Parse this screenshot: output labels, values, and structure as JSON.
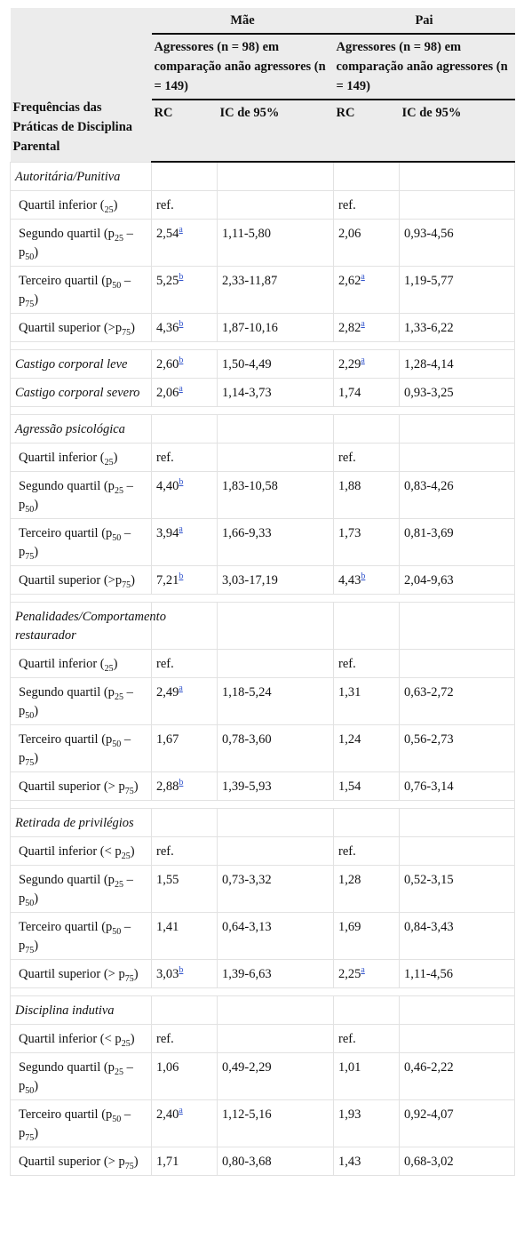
{
  "header": {
    "row_label": "Frequências das Práticas de Disciplina Parental",
    "mae": "Mãe",
    "pai": "Pai",
    "group_mae": "Agressores (n = 98) em comparação anão agressores (n = 149)",
    "group_pai": "Agressores (n = 98) em comparação anão agressores (n = 149)",
    "rc_mae": "RC",
    "ic_mae": "IC de 95%",
    "rc_pai": "RC",
    "ic_pai": "IC de 95%"
  },
  "groups": [
    {
      "title": "Autoritária/Punitiva",
      "rows": [
        {
          "label": [
            "Quartil inferior (",
            {
              "sub": "25"
            },
            ")"
          ],
          "cells": [
            "ref.",
            null,
            "ref.",
            null
          ]
        },
        {
          "label": [
            "Segundo quartil (p",
            {
              "sub": "25"
            },
            " – p",
            {
              "sub": "50"
            },
            ")"
          ],
          "cells": [
            {
              "text": "2,54",
              "sup": "a"
            },
            "1,11-5,80",
            "2,06",
            "0,93-4,56"
          ]
        },
        {
          "label": [
            "Terceiro quartil (p",
            {
              "sub": "50"
            },
            " – p",
            {
              "sub": "75"
            },
            ")"
          ],
          "cells": [
            {
              "text": "5,25",
              "sup": "b"
            },
            "2,33-11,87",
            {
              "text": "2,62",
              "sup": "a"
            },
            "1,19-5,77"
          ]
        },
        {
          "label": [
            "Quartil superior (>p",
            {
              "sub": "75"
            },
            ")"
          ],
          "cells": [
            {
              "text": "4,36",
              "sup": "b"
            },
            "1,87-10,16",
            {
              "text": "2,82",
              "sup": "a"
            },
            "1,33-6,22"
          ]
        }
      ]
    },
    {
      "rows": [
        {
          "italic": true,
          "label": [
            "Castigo corporal leve"
          ],
          "cells": [
            {
              "text": "2,60",
              "sup": "b"
            },
            "1,50-4,49",
            {
              "text": "2,29",
              "sup": "a"
            },
            "1,28-4,14"
          ]
        },
        {
          "italic": true,
          "label": [
            "Castigo corporal severo"
          ],
          "cells": [
            {
              "text": "2,06",
              "sup": "a"
            },
            "1,14-3,73",
            "1,74",
            "0,93-3,25"
          ]
        }
      ]
    },
    {
      "title": "Agressão psicológica",
      "rows": [
        {
          "label": [
            "Quartil inferior (",
            {
              "sub": "25"
            },
            ")"
          ],
          "cells": [
            "ref.",
            null,
            "ref.",
            null
          ]
        },
        {
          "label": [
            "Segundo quartil (p",
            {
              "sub": "25"
            },
            " – p",
            {
              "sub": "50"
            },
            ")"
          ],
          "cells": [
            {
              "text": "4,40",
              "sup": "b"
            },
            "1,83-10,58",
            "1,88",
            "0,83-4,26"
          ]
        },
        {
          "label": [
            "Terceiro quartil (p",
            {
              "sub": "50"
            },
            " – p",
            {
              "sub": "75"
            },
            ")"
          ],
          "cells": [
            {
              "text": "3,94",
              "sup": "a"
            },
            "1,66-9,33",
            "1,73",
            "0,81-3,69"
          ]
        },
        {
          "label": [
            "Quartil superior (>p",
            {
              "sub": "75"
            },
            ")"
          ],
          "cells": [
            {
              "text": "7,21",
              "sup": "b"
            },
            "3,03-17,19",
            {
              "text": "4,43",
              "sup": "b"
            },
            "2,04-9,63"
          ]
        }
      ]
    },
    {
      "title": "Penalidades/Comportamento restaurador",
      "rows": [
        {
          "label": [
            "Quartil inferior (",
            {
              "sub": "25"
            },
            ")"
          ],
          "cells": [
            "ref.",
            null,
            "ref.",
            null
          ]
        },
        {
          "label": [
            "Segundo quartil (p",
            {
              "sub": "25"
            },
            " – p",
            {
              "sub": "50"
            },
            ")"
          ],
          "cells": [
            {
              "text": "2,49",
              "sup": "a"
            },
            "1,18-5,24",
            "1,31",
            "0,63-2,72"
          ]
        },
        {
          "label": [
            "Terceiro quartil (p",
            {
              "sub": "50"
            },
            " – p",
            {
              "sub": "75"
            },
            ")"
          ],
          "cells": [
            "1,67",
            "0,78-3,60",
            "1,24",
            "0,56-2,73"
          ]
        },
        {
          "label": [
            "Quartil superior (> p",
            {
              "sub": "75"
            },
            ")"
          ],
          "cells": [
            {
              "text": "2,88",
              "sup": "b"
            },
            "1,39-5,93",
            "1,54",
            "0,76-3,14"
          ]
        }
      ]
    },
    {
      "title": "Retirada de privilégios",
      "rows": [
        {
          "label": [
            "Quartil inferior (< p",
            {
              "sub": "25"
            },
            ")"
          ],
          "cells": [
            "ref.",
            null,
            "ref.",
            null
          ]
        },
        {
          "label": [
            "Segundo quartil (p",
            {
              "sub": "25"
            },
            " – p",
            {
              "sub": "50"
            },
            ")"
          ],
          "cells": [
            "1,55",
            "0,73-3,32",
            "1,28",
            "0,52-3,15"
          ]
        },
        {
          "label": [
            "Terceiro quartil (p",
            {
              "sub": "50"
            },
            " – p",
            {
              "sub": "75"
            },
            ")"
          ],
          "cells": [
            "1,41",
            "0,64-3,13",
            "1,69",
            "0,84-3,43"
          ]
        },
        {
          "label": [
            "Quartil superior (> p",
            {
              "sub": "75"
            },
            ")"
          ],
          "cells": [
            {
              "text": "3,03",
              "sup": "b"
            },
            "1,39-6,63",
            {
              "text": "2,25",
              "sup": "a"
            },
            "1,11-4,56"
          ]
        }
      ]
    },
    {
      "title": "Disciplina indutiva",
      "rows": [
        {
          "label": [
            "Quartil inferior (< p",
            {
              "sub": "25"
            },
            ")"
          ],
          "cells": [
            "ref.",
            null,
            "ref.",
            null
          ]
        },
        {
          "label": [
            "Segundo quartil (p",
            {
              "sub": "25"
            },
            " – p",
            {
              "sub": "50"
            },
            ")"
          ],
          "cells": [
            "1,06",
            "0,49-2,29",
            "1,01",
            "0,46-2,22"
          ]
        },
        {
          "label": [
            "Terceiro quartil (p",
            {
              "sub": "50"
            },
            " – p",
            {
              "sub": "75"
            },
            ")"
          ],
          "cells": [
            {
              "text": "2,40",
              "sup": "a"
            },
            "1,12-5,16",
            "1,93",
            "0,92-4,07"
          ]
        },
        {
          "label": [
            "Quartil superior (> p",
            {
              "sub": "75"
            },
            ")"
          ],
          "cells": [
            "1,71",
            "0,80-3,68",
            "1,43",
            "0,68-3,02"
          ]
        }
      ]
    }
  ]
}
